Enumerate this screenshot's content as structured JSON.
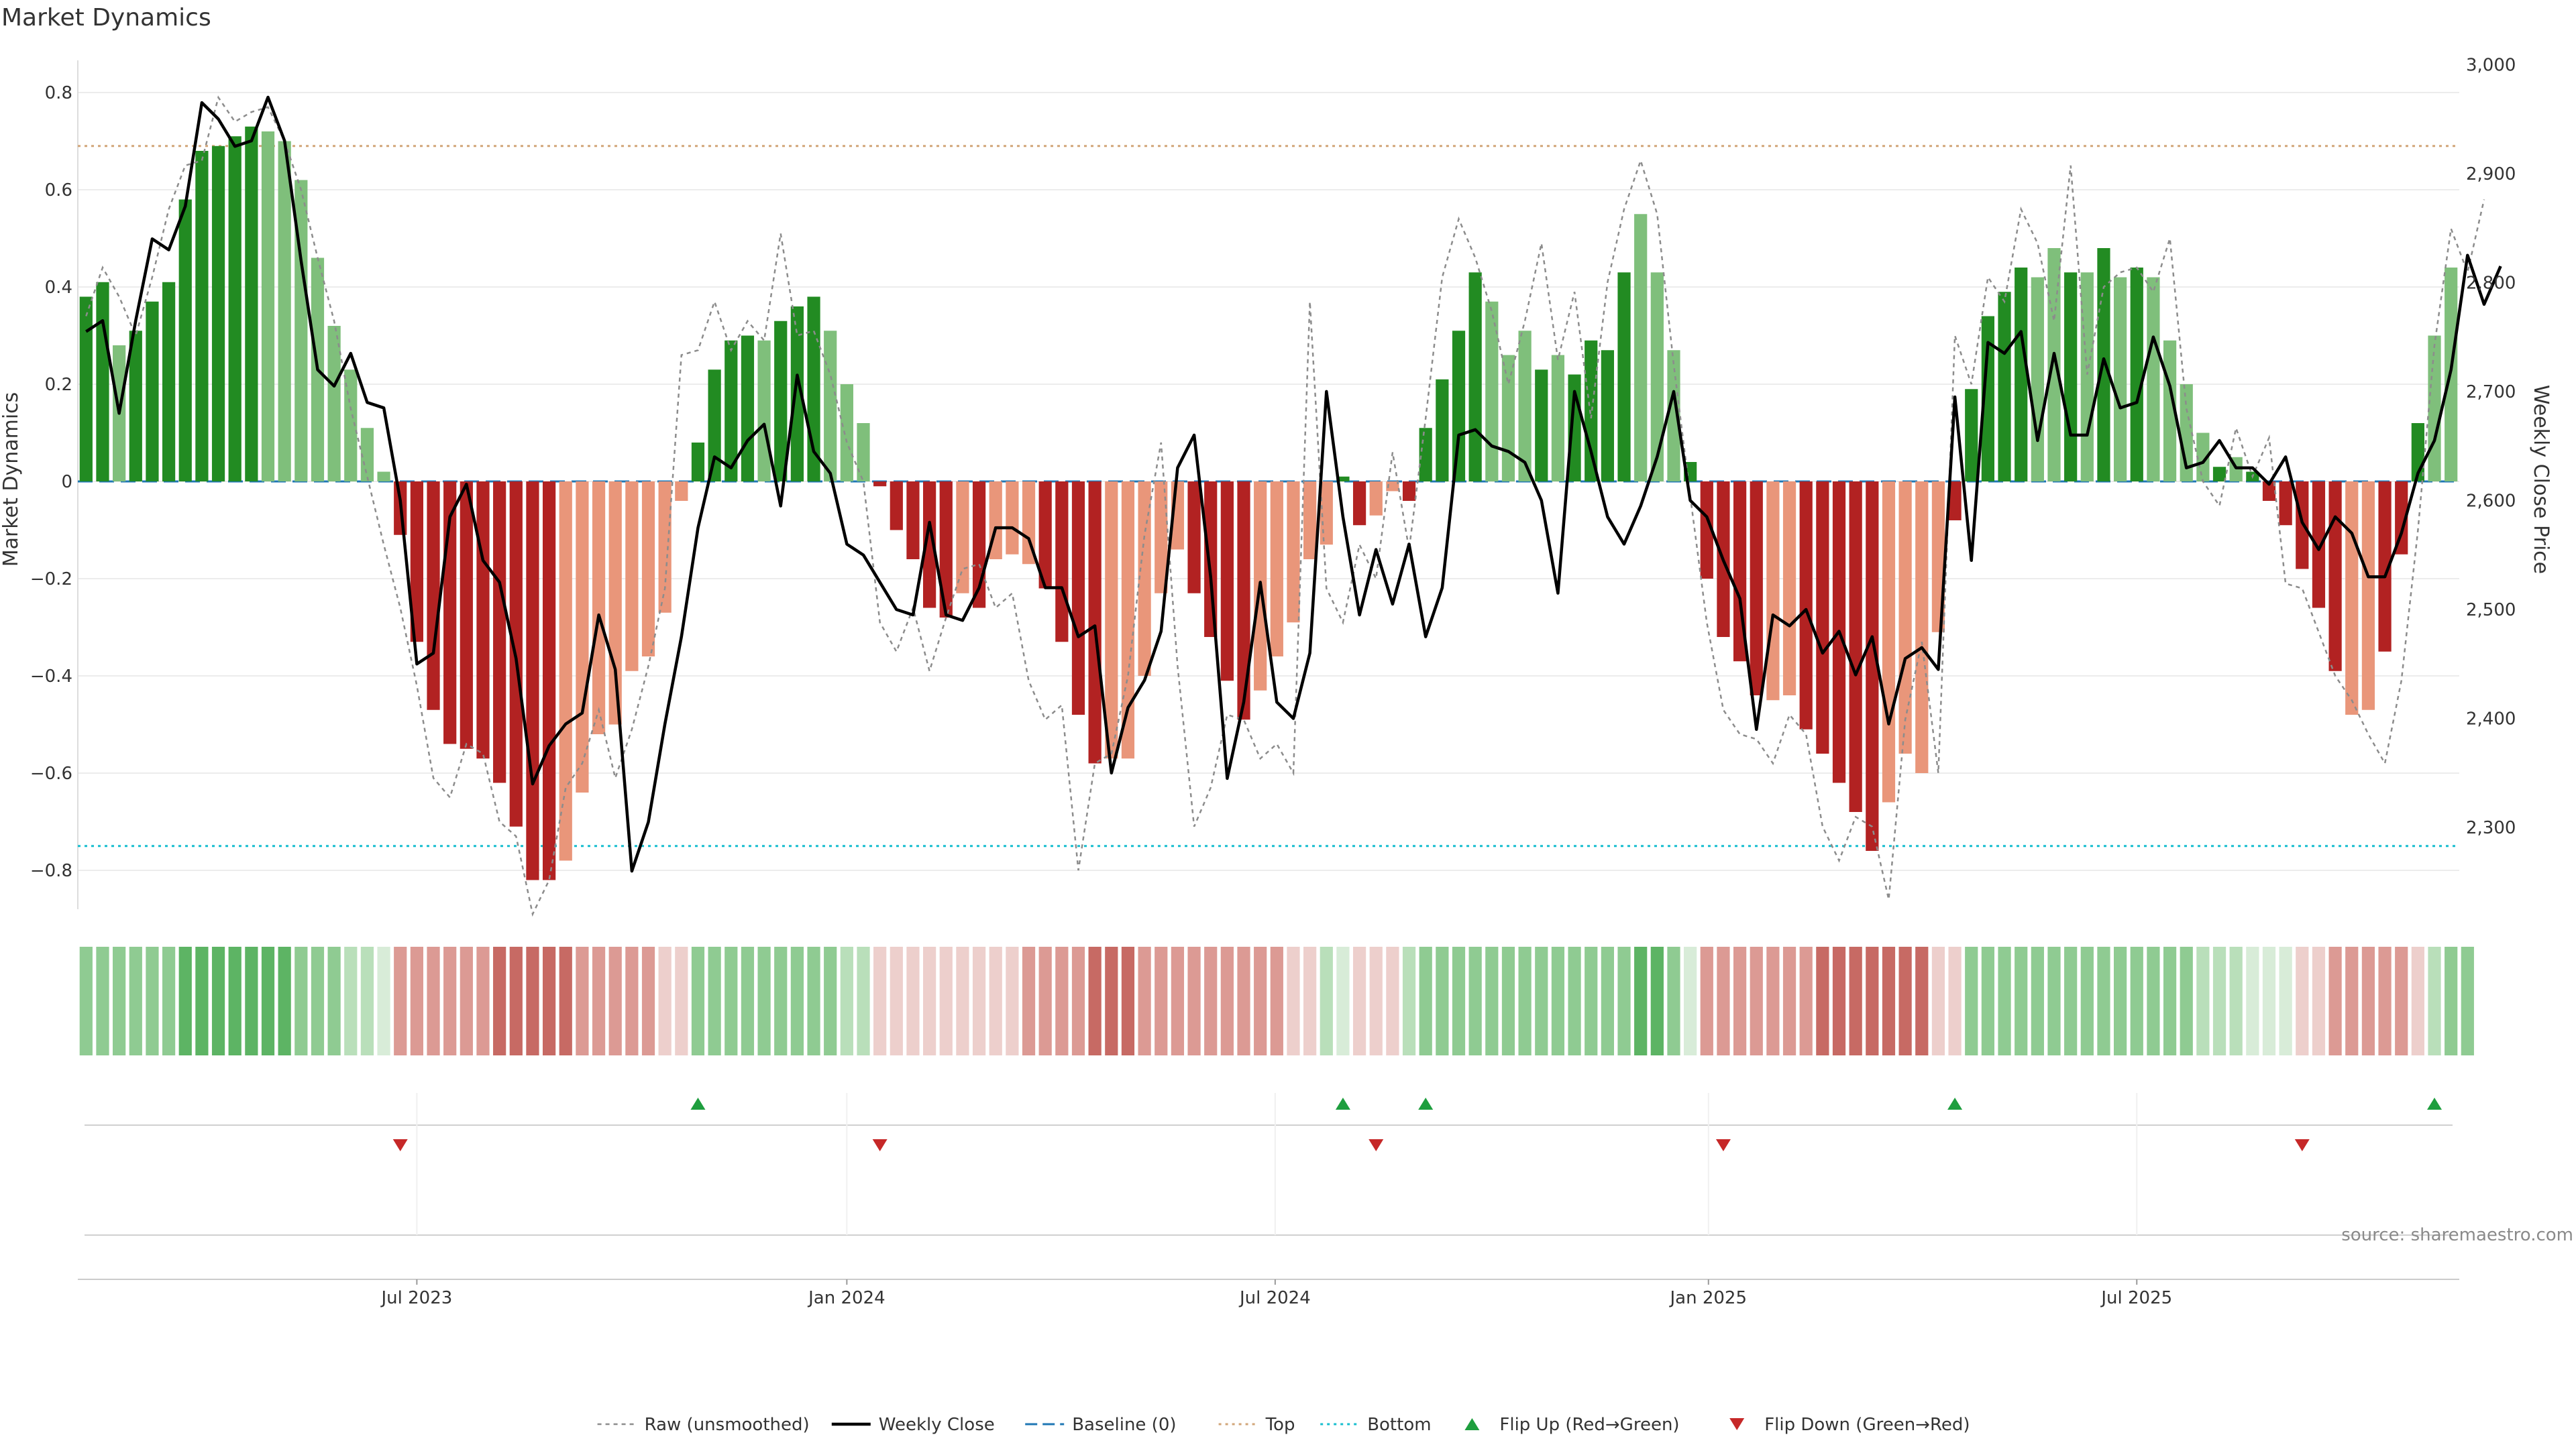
{
  "title": "Market Dynamics",
  "source_note": "source: sharemaestro.com",
  "colors": {
    "strong_green": "#228b22",
    "light_green": "#7fbf7b",
    "strong_red": "#b22222",
    "light_red": "#e9967a",
    "raw_line": "#8c8c8c",
    "close_line": "#000000",
    "baseline": "#1f77b4",
    "top_line": "#d2a679",
    "bottom_line": "#17becf",
    "flip_up": "#1e9e3e",
    "flip_down": "#c62828"
  },
  "chart_data": {
    "type": "bar",
    "y_left_label": "Market Dynamics",
    "y_right_label": "Weekly Close Price",
    "y_left_ticks": [
      "0.8",
      "0.6",
      "0.4",
      "0.2",
      "0",
      "−0.2",
      "−0.4",
      "−0.6",
      "−0.8"
    ],
    "y_left_tick_values": [
      0.8,
      0.6,
      0.4,
      0.2,
      0,
      -0.2,
      -0.4,
      -0.6,
      -0.8
    ],
    "y_left_range": [
      -0.88,
      0.88
    ],
    "y_right_ticks": [
      "3,000",
      "2,900",
      "2,800",
      "2,700",
      "2,600",
      "2,500",
      "2,400",
      "2,300"
    ],
    "y_right_tick_values": [
      3000,
      2900,
      2800,
      2700,
      2600,
      2500,
      2400,
      2300
    ],
    "y_right_range": [
      2225,
      3010
    ],
    "x_ticks": [
      {
        "label": "Jul 2023",
        "index": 20.5
      },
      {
        "label": "Jan 2024",
        "index": 46.5
      },
      {
        "label": "Jul 2024",
        "index": 72.4
      },
      {
        "label": "Jan 2025",
        "index": 98.6
      },
      {
        "label": "Jul 2025",
        "index": 124.5
      }
    ],
    "top_level": 0.69,
    "bottom_level": -0.75,
    "baseline": 0,
    "legend": [
      "Raw (unsmoothed)",
      "Weekly Close",
      "Baseline (0)",
      "Top",
      "Bottom",
      "Flip Up (Red→Green)",
      "Flip Down (Green→Red)"
    ],
    "legend_placement": "bottom-center",
    "values": [
      0.38,
      0.41,
      0.28,
      0.31,
      0.37,
      0.41,
      0.58,
      0.68,
      0.69,
      0.71,
      0.73,
      0.72,
      0.7,
      0.62,
      0.46,
      0.32,
      0.23,
      0.11,
      0.02,
      -0.11,
      -0.33,
      -0.47,
      -0.54,
      -0.55,
      -0.57,
      -0.62,
      -0.71,
      -0.82,
      -0.82,
      -0.78,
      -0.64,
      -0.52,
      -0.5,
      -0.39,
      -0.36,
      -0.27,
      -0.04,
      0.08,
      0.23,
      0.29,
      0.3,
      0.29,
      0.33,
      0.36,
      0.38,
      0.31,
      0.2,
      0.12,
      -0.01,
      -0.1,
      -0.16,
      -0.26,
      -0.28,
      -0.23,
      -0.26,
      -0.16,
      -0.15,
      -0.17,
      -0.22,
      -0.33,
      -0.48,
      -0.58,
      -0.57,
      -0.57,
      -0.4,
      -0.23,
      -0.14,
      -0.23,
      -0.32,
      -0.41,
      -0.49,
      -0.43,
      -0.36,
      -0.29,
      -0.16,
      -0.13,
      0.01,
      -0.09,
      -0.07,
      -0.02,
      -0.04,
      0.11,
      0.21,
      0.31,
      0.43,
      0.37,
      0.26,
      0.31,
      0.23,
      0.26,
      0.22,
      0.29,
      0.27,
      0.43,
      0.55,
      0.43,
      0.27,
      0.04,
      -0.2,
      -0.32,
      -0.37,
      -0.44,
      -0.45,
      -0.44,
      -0.51,
      -0.56,
      -0.62,
      -0.68,
      -0.76,
      -0.66,
      -0.56,
      -0.6,
      -0.31,
      -0.08,
      0.19,
      0.34,
      0.39,
      0.44,
      0.42,
      0.48,
      0.43,
      0.43,
      0.48,
      0.42,
      0.44,
      0.42,
      0.29,
      0.2,
      0.1,
      0.03,
      0.05,
      0.02,
      -0.04,
      -0.09,
      -0.18,
      -0.26,
      -0.39,
      -0.48,
      -0.47,
      -0.35,
      -0.15,
      0.12,
      0.3,
      0.44
    ],
    "strength": [
      1,
      1,
      0,
      1,
      1,
      1,
      1,
      1,
      1,
      1,
      1,
      0,
      0,
      0,
      0,
      0,
      0,
      0,
      0,
      1,
      1,
      1,
      1,
      1,
      1,
      1,
      1,
      1,
      1,
      0,
      0,
      0,
      0,
      0,
      0,
      0,
      0,
      1,
      1,
      1,
      1,
      0,
      1,
      1,
      1,
      0,
      0,
      0,
      1,
      1,
      1,
      1,
      1,
      0,
      1,
      0,
      0,
      0,
      1,
      1,
      1,
      1,
      0,
      0,
      0,
      0,
      0,
      1,
      1,
      1,
      1,
      0,
      0,
      0,
      0,
      0,
      1,
      1,
      0,
      0,
      1,
      1,
      1,
      1,
      1,
      0,
      0,
      0,
      1,
      0,
      1,
      1,
      1,
      1,
      0,
      0,
      0,
      1,
      1,
      1,
      1,
      1,
      0,
      0,
      1,
      1,
      1,
      1,
      1,
      0,
      0,
      0,
      0,
      1,
      1,
      1,
      1,
      1,
      0,
      0,
      1,
      0,
      1,
      0,
      1,
      0,
      0,
      0,
      0,
      1,
      0,
      1,
      1,
      1,
      1,
      1,
      1,
      0,
      0,
      1,
      1,
      1
    ],
    "weekly_close": [
      2755,
      2765,
      2680,
      2765,
      2840,
      2830,
      2870,
      2965,
      2950,
      2925,
      2930,
      2970,
      2930,
      2820,
      2720,
      2705,
      2735,
      2690,
      2685,
      2600,
      2450,
      2460,
      2585,
      2615,
      2545,
      2525,
      2455,
      2340,
      2375,
      2395,
      2405,
      2495,
      2445,
      2260,
      2305,
      2395,
      2475,
      2575,
      2640,
      2630,
      2655,
      2670,
      2595,
      2715,
      2645,
      2625,
      2560,
      2550,
      2525,
      2500,
      2495,
      2580,
      2495,
      2490,
      2520,
      2575,
      2575,
      2565,
      2520,
      2520,
      2475,
      2485,
      2350,
      2410,
      2435,
      2480,
      2630,
      2660,
      2530,
      2345,
      2415,
      2525,
      2415,
      2400,
      2460,
      2700,
      2585,
      2495,
      2555,
      2505,
      2560,
      2475,
      2520,
      2660,
      2665,
      2650,
      2645,
      2635,
      2600,
      2515,
      2700,
      2645,
      2585,
      2560,
      2595,
      2640,
      2700,
      2600,
      2585,
      2545,
      2510,
      2390,
      2495,
      2485,
      2500,
      2460,
      2480,
      2440,
      2475,
      2395,
      2455,
      2465,
      2445,
      2695,
      2545,
      2745,
      2735,
      2755,
      2655,
      2735,
      2660,
      2660,
      2730,
      2685,
      2690,
      2750,
      2705,
      2630,
      2635,
      2655,
      2630,
      2630,
      2615,
      2640,
      2580,
      2555,
      2585,
      2570,
      2530,
      2530,
      2570,
      2625,
      2655,
      2720,
      2825,
      2780,
      2815
    ],
    "raw": [
      0.34,
      0.44,
      0.38,
      0.3,
      0.42,
      0.56,
      0.65,
      0.66,
      0.79,
      0.74,
      0.76,
      0.77,
      0.7,
      0.6,
      0.46,
      0.33,
      0.15,
      0.01,
      -0.13,
      -0.26,
      -0.42,
      -0.61,
      -0.65,
      -0.54,
      -0.56,
      -0.7,
      -0.73,
      -0.89,
      -0.82,
      -0.63,
      -0.58,
      -0.47,
      -0.61,
      -0.51,
      -0.38,
      -0.22,
      0.26,
      0.27,
      0.37,
      0.27,
      0.33,
      0.29,
      0.51,
      0.3,
      0.31,
      0.22,
      0.08,
      0.0,
      -0.29,
      -0.35,
      -0.26,
      -0.39,
      -0.28,
      -0.18,
      -0.17,
      -0.26,
      -0.23,
      -0.41,
      -0.49,
      -0.46,
      -0.8,
      -0.58,
      -0.56,
      -0.4,
      -0.11,
      0.08,
      -0.38,
      -0.71,
      -0.63,
      -0.48,
      -0.49,
      -0.57,
      -0.54,
      -0.6,
      0.37,
      -0.22,
      -0.29,
      -0.13,
      -0.2,
      0.06,
      -0.14,
      0.13,
      0.42,
      0.54,
      0.46,
      0.35,
      0.2,
      0.33,
      0.49,
      0.25,
      0.39,
      0.13,
      0.41,
      0.56,
      0.66,
      0.55,
      0.24,
      -0.03,
      -0.29,
      -0.47,
      -0.52,
      -0.53,
      -0.58,
      -0.48,
      -0.52,
      -0.71,
      -0.78,
      -0.69,
      -0.71,
      -0.86,
      -0.49,
      -0.33,
      -0.6,
      0.3,
      0.2,
      0.42,
      0.37,
      0.56,
      0.49,
      0.33,
      0.65,
      0.22,
      0.4,
      0.43,
      0.44,
      0.39,
      0.5,
      0.15,
      0.0,
      -0.05,
      0.11,
      0.01,
      0.09,
      -0.21,
      -0.22,
      -0.31,
      -0.4,
      -0.45,
      -0.52,
      -0.58,
      -0.41,
      -0.1,
      0.28,
      0.52,
      0.43,
      0.58
    ],
    "ribbon_levels": [
      2,
      2,
      2,
      2,
      2,
      2,
      3,
      3,
      3,
      3,
      3,
      3,
      3,
      2,
      2,
      2,
      1,
      1,
      0,
      -2,
      -2,
      -2,
      -2,
      -2,
      -2,
      -3,
      -3,
      -3,
      -3,
      -3,
      -2,
      -2,
      -2,
      -2,
      -2,
      -1,
      -1,
      2,
      2,
      2,
      2,
      2,
      2,
      2,
      2,
      2,
      1,
      1,
      -1,
      -1,
      -1,
      -1,
      -1,
      -1,
      -1,
      -1,
      -1,
      -2,
      -2,
      -2,
      -2,
      -3,
      -3,
      -3,
      -2,
      -2,
      -2,
      -2,
      -2,
      -2,
      -2,
      -2,
      -2,
      -1,
      -1,
      1,
      0,
      -1,
      -1,
      -1,
      1,
      2,
      2,
      2,
      2,
      2,
      2,
      2,
      2,
      2,
      2,
      2,
      2,
      2,
      3,
      3,
      2,
      0,
      -2,
      -2,
      -2,
      -2,
      -2,
      -2,
      -2,
      -3,
      -3,
      -3,
      -3,
      -3,
      -3,
      -3,
      -1,
      -1,
      2,
      2,
      2,
      2,
      2,
      2,
      2,
      2,
      2,
      2,
      2,
      2,
      2,
      2,
      1,
      1,
      1,
      0,
      0,
      0,
      -1,
      -1,
      -2,
      -2,
      -2,
      -2,
      -2,
      -1,
      1,
      2,
      2
    ],
    "flip_up_indices": [
      37,
      76,
      81,
      113,
      142
    ],
    "flip_down_indices": [
      19,
      48,
      78,
      99,
      134
    ]
  }
}
